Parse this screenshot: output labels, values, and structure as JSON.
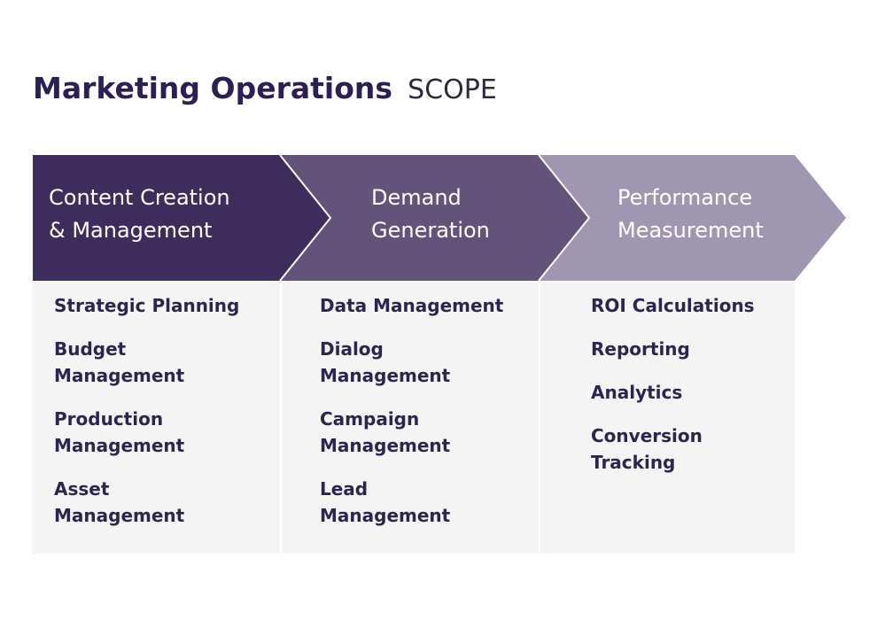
{
  "title": {
    "main": "Marketing Operations",
    "sub": "SCOPE"
  },
  "colors": {
    "stage_1": "#3e2d5c",
    "stage_2": "#63527a",
    "stage_3": "#9f97b1",
    "panel": "#f4f4f4",
    "item_text": "#2b2650",
    "title_text": "#2b1f55"
  },
  "stages": [
    {
      "heading_line1": "Content Creation",
      "heading_line2": "& Management",
      "items": [
        {
          "line1": "Strategic Planning",
          "line2": ""
        },
        {
          "line1": "Budget",
          "line2": "Management"
        },
        {
          "line1": "Production",
          "line2": "Management"
        },
        {
          "line1": "Asset",
          "line2": "Management"
        }
      ]
    },
    {
      "heading_line1": "Demand",
      "heading_line2": "Generation",
      "items": [
        {
          "line1": "Data Management",
          "line2": ""
        },
        {
          "line1": "Dialog",
          "line2": "Management"
        },
        {
          "line1": "Campaign",
          "line2": "Management"
        },
        {
          "line1": "Lead",
          "line2": "Management"
        }
      ]
    },
    {
      "heading_line1": "Performance",
      "heading_line2": "Measurement",
      "items": [
        {
          "line1": "ROI Calculations",
          "line2": ""
        },
        {
          "line1": "Reporting",
          "line2": ""
        },
        {
          "line1": "Analytics",
          "line2": ""
        },
        {
          "line1": "Conversion",
          "line2": "Tracking"
        }
      ]
    }
  ]
}
